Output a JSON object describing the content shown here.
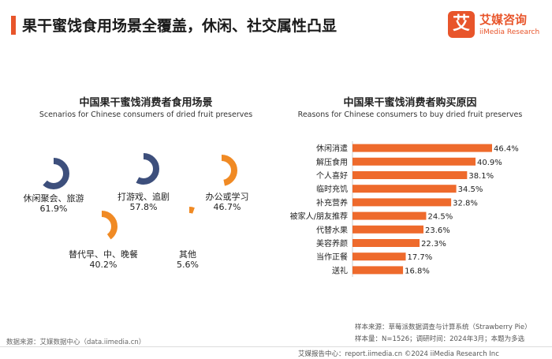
{
  "header": {
    "title": "果干蜜饯食用场景全覆盖，休闲、社交属性凸显",
    "accent_color": "#e8552b"
  },
  "logo": {
    "mark": "艾",
    "name_cn": "艾媒咨询",
    "name_en": "iiMedia Research"
  },
  "colors": {
    "orange": "#f08a24",
    "navy": "#3d4f7c",
    "bar_orange": "#ee6a2c"
  },
  "left_chart": {
    "title_cn": "中国果干蜜饯消费者食用场景",
    "title_en": "Scenarios for Chinese consumers of dried fruit preserves"
  },
  "right_chart": {
    "title_cn": "中国果干蜜饯消费者购买原因",
    "title_en": "Reasons for Chinese consumers to buy dried fruit preserves"
  },
  "chart_data": [
    {
      "type": "pie",
      "title": "中国果干蜜饯消费者食用场景",
      "subtitle": "Scenarios for Chinese consumers of dried fruit preserves",
      "items": [
        {
          "name": "休闲聚会、旅游",
          "value": 61.9,
          "label": "61.9%",
          "color": "#3d4f7c"
        },
        {
          "name": "打游戏、追剧",
          "value": 57.8,
          "label": "57.8%",
          "color": "#3d4f7c"
        },
        {
          "name": "办公或学习",
          "value": 46.7,
          "label": "46.7%",
          "color": "#f08a24"
        },
        {
          "name": "替代早、中、晚餐",
          "value": 40.2,
          "label": "40.2%",
          "color": "#f08a24"
        },
        {
          "name": "其他",
          "value": 5.6,
          "label": "5.6%",
          "color": "#f08a24"
        }
      ]
    },
    {
      "type": "bar",
      "orientation": "horizontal",
      "title": "中国果干蜜饯消费者购买原因",
      "subtitle": "Reasons for Chinese consumers to buy dried fruit preserves",
      "categories": [
        "休闲消遣",
        "解压食用",
        "个人喜好",
        "临时充饥",
        "补充营养",
        "被家人/朋友推荐",
        "代替水果",
        "美容养颜",
        "当作正餐",
        "送礼"
      ],
      "values": [
        46.4,
        40.9,
        38.1,
        34.5,
        32.8,
        24.5,
        23.6,
        22.3,
        17.7,
        16.8
      ],
      "value_labels": [
        "46.4%",
        "40.9%",
        "38.1%",
        "34.5%",
        "32.8%",
        "24.5%",
        "23.6%",
        "22.3%",
        "17.7%",
        "16.8%"
      ],
      "xlim": [
        0,
        50
      ]
    }
  ],
  "footer": {
    "source_left": "数据来源：艾媒数据中心（data.iimedia.cn）",
    "sample_source": "样本来源：草莓派数据调查与计算系统（Strawberry Pie）",
    "sample_size": "样本量：N=1526；调研时间：2024年3月；本题为多选",
    "bottom": "艾媒报告中心：report.iimedia.cn    ©2024  iiMedia Research Inc"
  }
}
